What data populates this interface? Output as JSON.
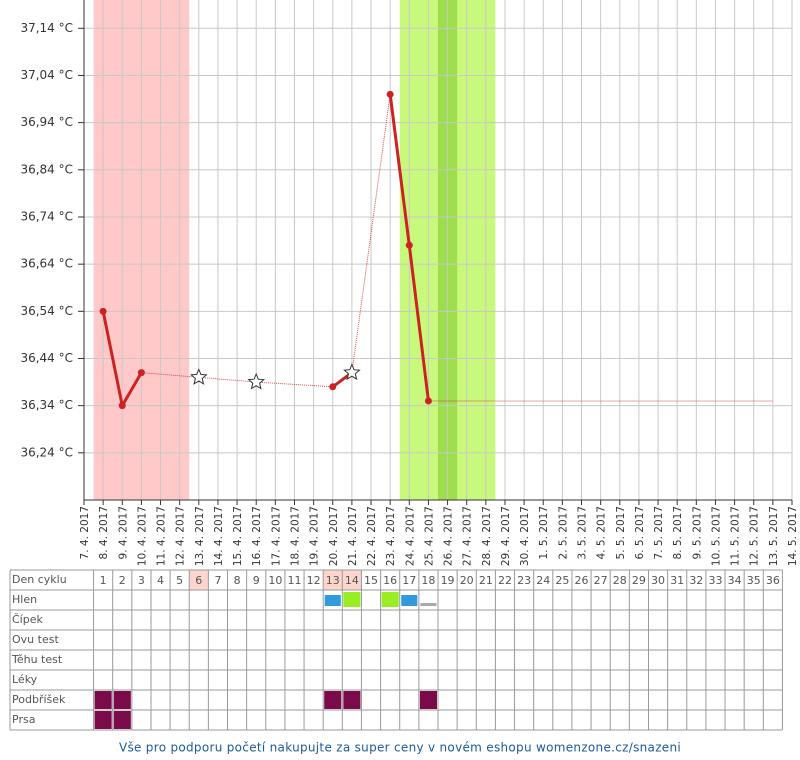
{
  "chart_data": {
    "type": "line",
    "categories": [
      "7. 4. 2017",
      "8. 4. 2017",
      "9. 4. 2017",
      "10. 4. 2017",
      "11. 4. 2017",
      "12. 4. 2017",
      "13. 4. 2017",
      "14. 4. 2017",
      "15. 4. 2017",
      "16. 4. 2017",
      "17. 4. 2017",
      "18. 4. 2017",
      "19. 4. 2017",
      "20. 4. 2017",
      "21. 4. 2017",
      "22. 4. 2017",
      "23. 4. 2017",
      "24. 4. 2017",
      "25. 4. 2017",
      "26. 4. 2017",
      "27. 4. 2017",
      "28. 4. 2017",
      "29. 4. 2017",
      "30. 4. 2017",
      "1. 5. 2017",
      "2. 5. 2017",
      "3. 5. 2017",
      "4. 5. 2017",
      "5. 5. 2017",
      "6. 5. 2017",
      "7. 5. 2017",
      "8. 5. 2017",
      "9. 5. 2017",
      "10. 5. 2017",
      "11. 5. 2017",
      "12. 5. 2017",
      "13. 5. 2017",
      "14. 5. 2017"
    ],
    "series": [
      {
        "color": "#cc2222",
        "values": [
          null,
          36.54,
          36.34,
          36.41,
          null,
          null,
          36.4,
          null,
          null,
          36.39,
          null,
          null,
          null,
          36.38,
          36.41,
          null,
          37.0,
          36.68,
          36.35,
          null,
          null,
          null,
          null,
          null,
          null,
          null,
          null,
          null,
          null,
          null,
          null,
          null,
          null,
          null,
          null,
          null,
          null,
          null
        ],
        "markers": [
          null,
          "circle",
          "circle",
          "circle",
          null,
          null,
          "star",
          null,
          null,
          "star",
          null,
          null,
          null,
          "circle",
          "star",
          null,
          "circle",
          "circle",
          "circle",
          null,
          null,
          null,
          null,
          null,
          null,
          null,
          null,
          null,
          null,
          null,
          null,
          null,
          null,
          null,
          null,
          null,
          null,
          null
        ]
      },
      {
        "color": "#cc2222",
        "values": [
          null,
          null,
          null,
          null,
          null,
          null,
          null,
          null,
          null,
          null,
          null,
          null,
          null,
          null,
          null,
          null,
          null,
          null,
          36.35,
          null,
          null,
          null,
          null,
          null,
          null,
          null,
          null,
          null,
          null,
          null,
          null,
          null,
          null,
          null,
          null,
          null,
          36.35,
          null
        ]
      }
    ],
    "ylim": [
      36.14,
      37.2
    ],
    "yticks": [
      {
        "value": 36.24,
        "label": "36,24 °C"
      },
      {
        "value": 36.34,
        "label": "36,34 °C"
      },
      {
        "value": 36.44,
        "label": "36,44 °C"
      },
      {
        "value": 36.54,
        "label": "36,54 °C"
      },
      {
        "value": 36.64,
        "label": "36,64 °C"
      },
      {
        "value": 36.74,
        "label": "36,74 °C"
      },
      {
        "value": 36.84,
        "label": "36,84 °C"
      },
      {
        "value": 36.94,
        "label": "36,94 °C"
      },
      {
        "value": 37.04,
        "label": "37,04 °C"
      },
      {
        "value": 37.14,
        "label": "37,14 °C"
      }
    ],
    "grid": true,
    "bands": [
      {
        "from": 1,
        "to": 5,
        "color": "#ffc9c9"
      },
      {
        "from": 17,
        "to": 21,
        "color": "#c9f97c"
      },
      {
        "from": 19,
        "to": 19,
        "color": "#9ede4c"
      }
    ]
  },
  "table": {
    "rows": [
      {
        "label": "Den cyklu",
        "cells": [
          1,
          2,
          3,
          4,
          5,
          6,
          7,
          8,
          9,
          10,
          11,
          12,
          13,
          14,
          15,
          16,
          17,
          18,
          19,
          20,
          21,
          22,
          23,
          24,
          25,
          26,
          27,
          28,
          29,
          30,
          31,
          32,
          33,
          34,
          35,
          36
        ],
        "highlight": [
          null,
          null,
          null,
          null,
          null,
          "#fcd5cc",
          null,
          null,
          null,
          null,
          null,
          null,
          "#fcd5cc",
          "#fcd5cc",
          null,
          null,
          null,
          null,
          null,
          null,
          null,
          null,
          null,
          null,
          null,
          null,
          null,
          null,
          null,
          null,
          null,
          null,
          null,
          null,
          null,
          null
        ]
      },
      {
        "label": "Hlen",
        "marks": [
          null,
          null,
          null,
          null,
          null,
          null,
          null,
          null,
          null,
          null,
          null,
          null,
          "#3399dd",
          "#99ee22",
          null,
          "#99ee22",
          "#3399dd",
          "#aaaaaa",
          null,
          null,
          null,
          null,
          null,
          null,
          null,
          null,
          null,
          null,
          null,
          null,
          null,
          null,
          null,
          null,
          null,
          null
        ]
      },
      {
        "label": "Čípek"
      },
      {
        "label": "Ovu test"
      },
      {
        "label": "Těhu test"
      },
      {
        "label": "Léky"
      },
      {
        "label": "Podbříšek",
        "marks": [
          "#7a0a4a",
          "#7a0a4a",
          null,
          null,
          null,
          null,
          null,
          null,
          null,
          null,
          null,
          null,
          "#7a0a4a",
          "#7a0a4a",
          null,
          null,
          null,
          "#7a0a4a",
          null,
          null,
          null,
          null,
          null,
          null,
          null,
          null,
          null,
          null,
          null,
          null,
          null,
          null,
          null,
          null,
          null,
          null
        ]
      },
      {
        "label": "Prsa",
        "marks": [
          "#7a0a4a",
          "#7a0a4a",
          null,
          null,
          null,
          null,
          null,
          null,
          null,
          null,
          null,
          null,
          null,
          null,
          null,
          null,
          null,
          null,
          null,
          null,
          null,
          null,
          null,
          null,
          null,
          null,
          null,
          null,
          null,
          null,
          null,
          null,
          null,
          null,
          null,
          null
        ]
      }
    ]
  },
  "footer": "Vše pro podporu početí nakupujte za super ceny v novém eshopu womenzone.cz/snazeni"
}
